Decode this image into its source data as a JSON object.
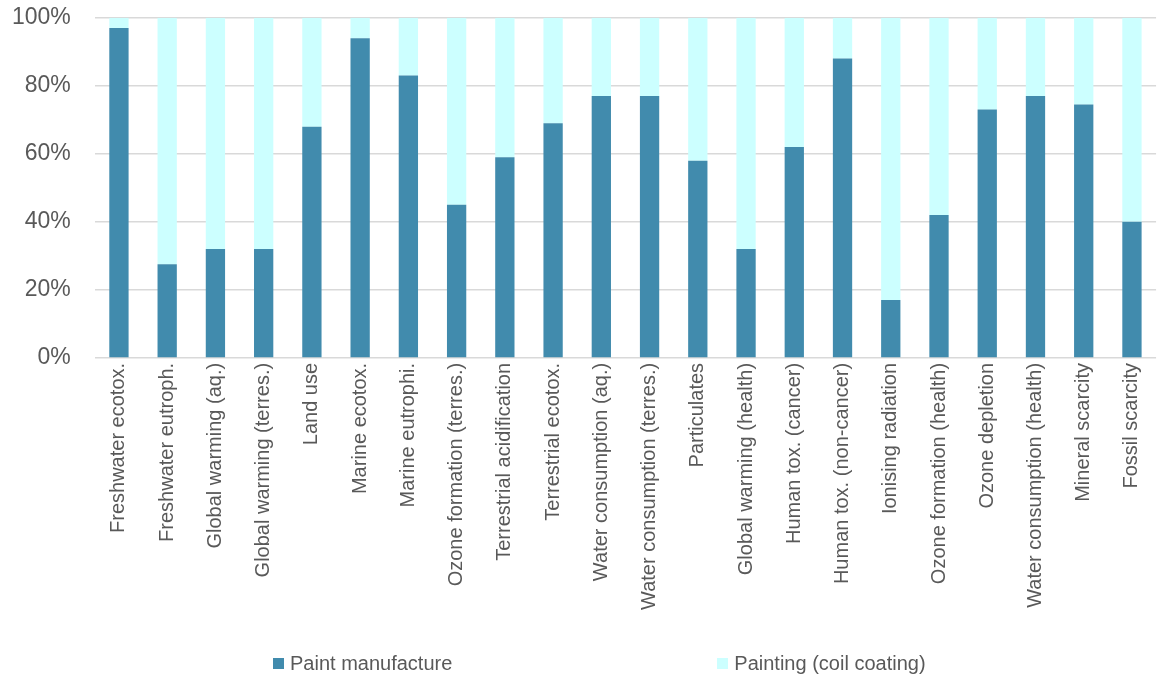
{
  "chart_data": {
    "type": "bar",
    "stacked": true,
    "categories": [
      "Freshwater ecotox.",
      "Freshwater eutroph.",
      "Global warming (aq.)",
      "Global warming (terres.)",
      "Land use",
      "Marine ecotox.",
      "Marine eutrophi.",
      "Ozone formation (terres.)",
      "Terrestrial acidification",
      "Terrestrial ecotox.",
      "Water consumption (aq.)",
      "Water consumption (terres.)",
      "Particulates",
      "Global warming (health)",
      "Human tox. (cancer)",
      "Human tox. (non-cancer)",
      "Ionising radiation",
      "Ozone formation (health)",
      "Ozone depletion",
      "Water consumption (health)",
      "Mineral scarcity",
      "Fossil scarcity"
    ],
    "series": [
      {
        "name": "Paint manufacture",
        "color": "#418bad",
        "values": [
          97,
          27.5,
          32,
          32,
          68,
          94,
          83,
          45,
          59,
          69,
          77,
          77,
          58,
          32,
          62,
          88,
          17,
          42,
          73,
          77,
          74.5,
          40
        ]
      },
      {
        "name": "Painting (coil coating)",
        "color": "#ccffff",
        "values": [
          3,
          72.5,
          68,
          68,
          32,
          6,
          17,
          55,
          41,
          31,
          23,
          23,
          42,
          68,
          38,
          12,
          83,
          58,
          27,
          23,
          25.5,
          60
        ]
      }
    ],
    "ylim": [
      0,
      100
    ],
    "yticks": [
      {
        "value": 0,
        "label": "0%"
      },
      {
        "value": 20,
        "label": "20%"
      },
      {
        "value": 40,
        "label": "40%"
      },
      {
        "value": 60,
        "label": "60%"
      },
      {
        "value": 80,
        "label": "80%"
      },
      {
        "value": 100,
        "label": "100%"
      }
    ],
    "grid": "y",
    "legend": "bottom"
  }
}
